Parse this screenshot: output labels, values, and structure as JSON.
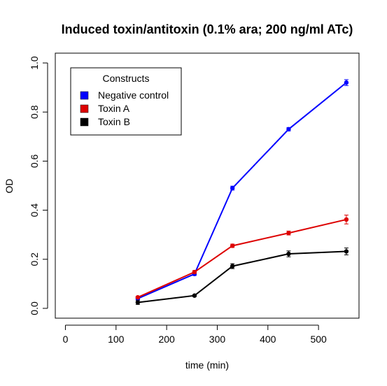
{
  "chart_data": {
    "type": "line",
    "title": "Induced toxin/antitoxin (0.1% ara; 200 ng/ml ATc)",
    "xlabel": "time (min)",
    "ylabel": "OD",
    "xlim": [
      -20,
      580
    ],
    "ylim": [
      -0.04,
      1.04
    ],
    "xticks": [
      0,
      100,
      200,
      300,
      400,
      500
    ],
    "xtick_labels": [
      "0",
      "100",
      "200",
      "300",
      "400",
      "500"
    ],
    "yticks": [
      0.0,
      0.2,
      0.4,
      0.6,
      0.8,
      1.0
    ],
    "ytick_labels": [
      "0.0",
      "0.2",
      "0.4",
      "0.6",
      "0.8",
      "1.0"
    ],
    "grid": false,
    "legend": {
      "title": "Constructs",
      "position": "top-left"
    },
    "x": [
      143,
      255,
      330,
      441,
      555
    ],
    "series": [
      {
        "name": "Negative control",
        "color": "#0000ff",
        "values": [
          0.04,
          0.14,
          0.49,
          0.73,
          0.92
        ],
        "errors": [
          0.005,
          0.006,
          0.008,
          0.007,
          0.012
        ]
      },
      {
        "name": "Toxin A",
        "color": "#dd0000",
        "values": [
          0.045,
          0.148,
          0.255,
          0.307,
          0.362
        ],
        "errors": [
          0.004,
          0.006,
          0.007,
          0.008,
          0.018
        ]
      },
      {
        "name": "Toxin B",
        "color": "#000000",
        "values": [
          0.024,
          0.052,
          0.172,
          0.222,
          0.232
        ],
        "errors": [
          0.008,
          0.004,
          0.01,
          0.012,
          0.014
        ]
      }
    ]
  }
}
